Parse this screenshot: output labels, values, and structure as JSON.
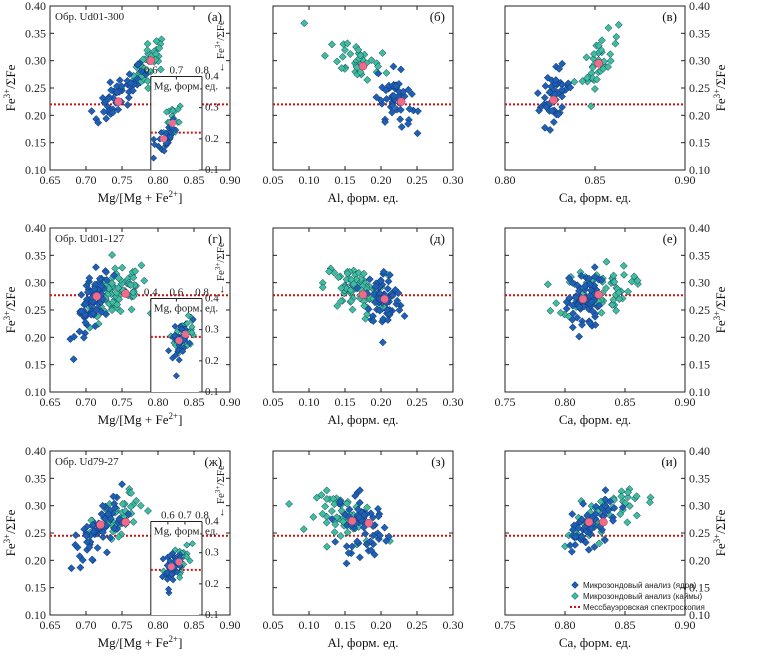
{
  "legend": {
    "core_label": "Микрозондовый анализ (ядра)",
    "rim_label": "Микрозондовый анализ (каймы)",
    "moss_label": "Мессбауэровская спектроскопия",
    "core_color": "#1f5fb4",
    "rim_color": "#3fbf99",
    "mean_color": "#f06a8a",
    "line_color": "#cc1111"
  },
  "chart_data": [
    {
      "type": "scatter",
      "id": "a",
      "panel_label": "(а)",
      "sample": "Обр. Ud01-300",
      "xlabel": "Mg/[Mg + Fe2+]",
      "ylabel": "Fe3+/ΣFe",
      "y_side": "left",
      "xlim": [
        0.65,
        0.9
      ],
      "ylim": [
        0.1,
        0.4
      ],
      "xticks": [
        "0.65",
        "0.70",
        "0.75",
        "0.80",
        "0.85",
        "0.90"
      ],
      "yticks": [
        "0.10",
        "0.15",
        "0.20",
        "0.25",
        "0.30",
        "0.35",
        "0.40"
      ],
      "ref_line": 0.22,
      "core": {
        "cx": 0.745,
        "cy": 0.235,
        "sx": 0.018,
        "sy": 0.028,
        "n": 50,
        "r": 0.82
      },
      "rim": {
        "cx": 0.79,
        "cy": 0.3,
        "sx": 0.012,
        "sy": 0.022,
        "n": 38,
        "r": 0.6
      },
      "means": [
        [
          0.745,
          0.225
        ],
        [
          0.79,
          0.3
        ]
      ],
      "inset": {
        "xlabel": "Mg, форм. ед.",
        "ylabel": "← Fe3+/ΣFe",
        "xlim": [
          0.6,
          0.8
        ],
        "ylim": [
          0.1,
          0.4
        ],
        "xticks": [
          "0.6",
          "0.7",
          "0.8"
        ],
        "yticks": [
          "0.1",
          "0.2",
          "0.3",
          "0.4"
        ],
        "ref_line": 0.22,
        "core": {
          "cx": 0.65,
          "cy": 0.2,
          "sx": 0.025,
          "sy": 0.03,
          "n": 30,
          "r": 0.6
        },
        "rim": {
          "cx": 0.685,
          "cy": 0.25,
          "sx": 0.02,
          "sy": 0.035,
          "n": 20,
          "r": 0.6
        }
      }
    },
    {
      "type": "scatter",
      "id": "b",
      "panel_label": "(б)",
      "xlabel": "Al, форм. ед.",
      "xlim": [
        0.05,
        0.3
      ],
      "ylim": [
        0.1,
        0.4
      ],
      "xticks": [
        "0.05",
        "0.10",
        "0.15",
        "0.20",
        "0.25",
        "0.30"
      ],
      "ref_line": 0.22,
      "core": {
        "cx": 0.218,
        "cy": 0.235,
        "sx": 0.012,
        "sy": 0.025,
        "n": 50,
        "r": -0.3
      },
      "rim": {
        "cx": 0.17,
        "cy": 0.3,
        "sx": 0.022,
        "sy": 0.025,
        "n": 38,
        "r": -0.5
      },
      "means": [
        [
          0.228,
          0.225
        ],
        [
          0.175,
          0.29
        ]
      ]
    },
    {
      "type": "scatter",
      "id": "v",
      "panel_label": "(в)",
      "ylabel": "Fe3+/ΣFe",
      "y_side": "right",
      "xlabel": "Ca, форм. ед.",
      "xlim": [
        0.8,
        0.9
      ],
      "ylim": [
        0.1,
        0.4
      ],
      "xticks": [
        "0.80",
        "0.85",
        "0.90"
      ],
      "yticks": [
        "0.10",
        "0.15",
        "0.20",
        "0.25",
        "0.30",
        "0.35",
        "0.40"
      ],
      "ref_line": 0.22,
      "core": {
        "cx": 0.827,
        "cy": 0.235,
        "sx": 0.005,
        "sy": 0.025,
        "n": 50,
        "r": 0.5
      },
      "rim": {
        "cx": 0.853,
        "cy": 0.3,
        "sx": 0.005,
        "sy": 0.025,
        "n": 38,
        "r": 0.6
      },
      "means": [
        [
          0.827,
          0.228
        ],
        [
          0.852,
          0.295
        ]
      ]
    },
    {
      "type": "scatter",
      "id": "g",
      "panel_label": "(г)",
      "sample": "Обр. Ud01-127",
      "xlabel": "Mg/[Mg + Fe2+]",
      "ylabel": "Fe3+/ΣFe",
      "y_side": "left",
      "xlim": [
        0.65,
        0.9
      ],
      "ylim": [
        0.1,
        0.4
      ],
      "xticks": [
        "0.65",
        "0.70",
        "0.75",
        "0.80",
        "0.85",
        "0.90"
      ],
      "yticks": [
        "0.10",
        "0.15",
        "0.20",
        "0.25",
        "0.30",
        "0.35",
        "0.40"
      ],
      "ref_line": 0.277,
      "core": {
        "cx": 0.71,
        "cy": 0.26,
        "sx": 0.012,
        "sy": 0.03,
        "n": 70,
        "r": 0.5
      },
      "rim": {
        "cx": 0.745,
        "cy": 0.28,
        "sx": 0.02,
        "sy": 0.025,
        "n": 80,
        "r": 0.4
      },
      "means": [
        [
          0.715,
          0.275
        ],
        [
          0.755,
          0.28
        ]
      ],
      "inset": {
        "xlabel": "Mg, форм. ед.",
        "ylabel": "← Fe3+/ΣFe",
        "xlim": [
          0.4,
          0.8
        ],
        "ylim": [
          0.1,
          0.4
        ],
        "xticks": [
          "0.4",
          "0.6",
          "0.8"
        ],
        "yticks": [
          "0.1",
          "0.2",
          "0.3",
          "0.4"
        ],
        "ref_line": 0.277,
        "core": {
          "cx": 0.62,
          "cy": 0.265,
          "sx": 0.035,
          "sy": 0.03,
          "n": 35,
          "r": 0.5
        },
        "rim": {
          "cx": 0.67,
          "cy": 0.285,
          "sx": 0.04,
          "sy": 0.025,
          "n": 40,
          "r": 0.4
        }
      }
    },
    {
      "type": "scatter",
      "id": "d",
      "panel_label": "(д)",
      "xlabel": "Al, форм. ед.",
      "xlim": [
        0.05,
        0.3
      ],
      "ylim": [
        0.1,
        0.4
      ],
      "xticks": [
        "0.05",
        "0.10",
        "0.15",
        "0.20",
        "0.25",
        "0.30"
      ],
      "ref_line": 0.277,
      "core": {
        "cx": 0.205,
        "cy": 0.268,
        "sx": 0.013,
        "sy": 0.028,
        "n": 70,
        "r": -0.2
      },
      "rim": {
        "cx": 0.165,
        "cy": 0.285,
        "sx": 0.022,
        "sy": 0.022,
        "n": 80,
        "r": -0.3
      },
      "means": [
        [
          0.205,
          0.27
        ],
        [
          0.175,
          0.278
        ]
      ]
    },
    {
      "type": "scatter",
      "id": "e",
      "panel_label": "(е)",
      "ylabel": "Fe3+/ΣFe",
      "y_side": "right",
      "xlabel": "Ca, форм. ед.",
      "xlim": [
        0.75,
        0.9
      ],
      "ylim": [
        0.1,
        0.4
      ],
      "xticks": [
        "0.75",
        "0.80",
        "0.85",
        "0.90"
      ],
      "yticks": [
        "0.10",
        "0.15",
        "0.20",
        "0.25",
        "0.30",
        "0.35",
        "0.40"
      ],
      "ref_line": 0.277,
      "core": {
        "cx": 0.815,
        "cy": 0.265,
        "sx": 0.007,
        "sy": 0.028,
        "n": 70,
        "r": 0.2
      },
      "rim": {
        "cx": 0.825,
        "cy": 0.285,
        "sx": 0.015,
        "sy": 0.022,
        "n": 80,
        "r": 0.2
      },
      "means": [
        [
          0.815,
          0.27
        ],
        [
          0.828,
          0.278
        ]
      ]
    },
    {
      "type": "scatter",
      "id": "zh",
      "panel_label": "(ж)",
      "sample": "Обр. Ud79-27",
      "xlabel": "Mg/[Mg + Fe2+]",
      "ylabel": "Fe3+/ΣFe",
      "y_side": "left",
      "xlim": [
        0.65,
        0.9
      ],
      "ylim": [
        0.1,
        0.4
      ],
      "xticks": [
        "0.65",
        "0.70",
        "0.75",
        "0.80",
        "0.85",
        "0.90"
      ],
      "yticks": [
        "0.10",
        "0.15",
        "0.20",
        "0.25",
        "0.30",
        "0.35",
        "0.40"
      ],
      "ref_line": 0.245,
      "core": {
        "cx": 0.72,
        "cy": 0.26,
        "sx": 0.018,
        "sy": 0.03,
        "n": 60,
        "r": 0.7
      },
      "rim": {
        "cx": 0.745,
        "cy": 0.275,
        "sx": 0.018,
        "sy": 0.025,
        "n": 60,
        "r": 0.6
      },
      "means": [
        [
          0.72,
          0.265
        ],
        [
          0.755,
          0.27
        ]
      ],
      "inset": {
        "xlabel": "Mg, форм. ед.",
        "ylabel": "← Fe3+/ΣFe",
        "xlim": [
          0.5,
          0.8
        ],
        "ylim": [
          0.1,
          0.4
        ],
        "xticks": [
          "0.6",
          "0.7",
          "0.8"
        ],
        "yticks": [
          "0.1",
          "0.2",
          "0.3",
          "0.4"
        ],
        "ref_line": 0.245,
        "core": {
          "cx": 0.62,
          "cy": 0.255,
          "sx": 0.03,
          "sy": 0.03,
          "n": 35,
          "r": 0.6
        },
        "rim": {
          "cx": 0.665,
          "cy": 0.27,
          "sx": 0.03,
          "sy": 0.025,
          "n": 35,
          "r": 0.5
        }
      }
    },
    {
      "type": "scatter",
      "id": "z",
      "panel_label": "(з)",
      "xlabel": "Al, форм. ед.",
      "xlim": [
        0.05,
        0.3
      ],
      "ylim": [
        0.1,
        0.4
      ],
      "xticks": [
        "0.05",
        "0.10",
        "0.15",
        "0.20",
        "0.25",
        "0.30"
      ],
      "ref_line": 0.245,
      "core": {
        "cx": 0.175,
        "cy": 0.262,
        "sx": 0.018,
        "sy": 0.028,
        "n": 60,
        "r": -0.3
      },
      "rim": {
        "cx": 0.155,
        "cy": 0.275,
        "sx": 0.022,
        "sy": 0.022,
        "n": 60,
        "r": -0.3
      },
      "means": [
        [
          0.183,
          0.268
        ],
        [
          0.16,
          0.272
        ]
      ]
    },
    {
      "type": "scatter",
      "id": "i",
      "panel_label": "(и)",
      "ylabel": "Fe3+/ΣFe",
      "y_side": "right",
      "xlabel": "Ca, форм. ед.",
      "xlim": [
        0.75,
        0.9
      ],
      "ylim": [
        0.1,
        0.4
      ],
      "xticks": [
        "0.75",
        "0.80",
        "0.85",
        "0.90"
      ],
      "yticks": [
        "0.10",
        "0.15",
        "0.20",
        "0.25",
        "0.30",
        "0.35",
        "0.40"
      ],
      "ref_line": 0.245,
      "core": {
        "cx": 0.82,
        "cy": 0.262,
        "sx": 0.012,
        "sy": 0.025,
        "n": 60,
        "r": 0.7
      },
      "rim": {
        "cx": 0.83,
        "cy": 0.28,
        "sx": 0.015,
        "sy": 0.025,
        "n": 60,
        "r": 0.6
      },
      "means": [
        [
          0.82,
          0.27
        ],
        [
          0.832,
          0.27
        ]
      ]
    }
  ]
}
